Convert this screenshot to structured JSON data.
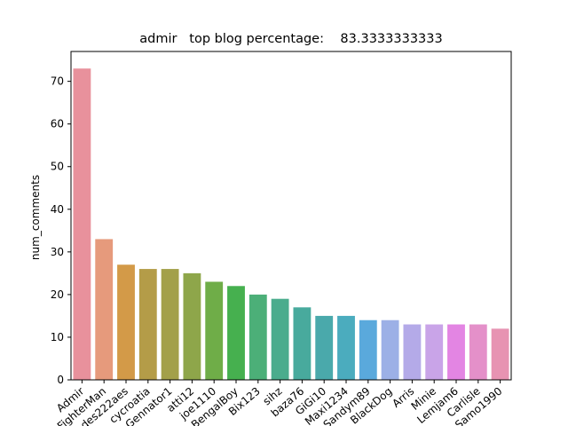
{
  "chart_data": {
    "type": "bar",
    "title": "admir   top blog percentage:    83.3333333333",
    "xlabel": "",
    "ylabel": "num_comments",
    "ylim": [
      0,
      77
    ],
    "yticks": [
      0,
      10,
      20,
      30,
      40,
      50,
      60,
      70
    ],
    "grid": false,
    "categories": [
      "Admir",
      "FighterMan",
      "des222aes",
      "cycroatia",
      "Gennator1",
      "atti12",
      "joe1110",
      "BengalBoy",
      "Bix123",
      "sihz",
      "baza76",
      "GiGi10",
      "Maxi1234",
      "Sandym89",
      "BlackDog",
      "Arris",
      "Minie",
      "Lemjam6",
      "Carlisle",
      "Samo1990"
    ],
    "values": [
      73,
      33,
      27,
      26,
      26,
      25,
      23,
      22,
      20,
      19,
      17,
      15,
      15,
      14,
      14,
      13,
      13,
      13,
      13,
      12
    ],
    "colors": [
      "#e8919c",
      "#e69a7c",
      "#d39a48",
      "#b49c48",
      "#a3a04a",
      "#8ea64a",
      "#6fad48",
      "#46b04f",
      "#4caf78",
      "#4aac8d",
      "#48aa9d",
      "#4aa9ab",
      "#4bacbe",
      "#5aa9dc",
      "#9cb0e6",
      "#b4aae8",
      "#c9a4e8",
      "#e385e3",
      "#e490c9",
      "#e793b2"
    ]
  }
}
